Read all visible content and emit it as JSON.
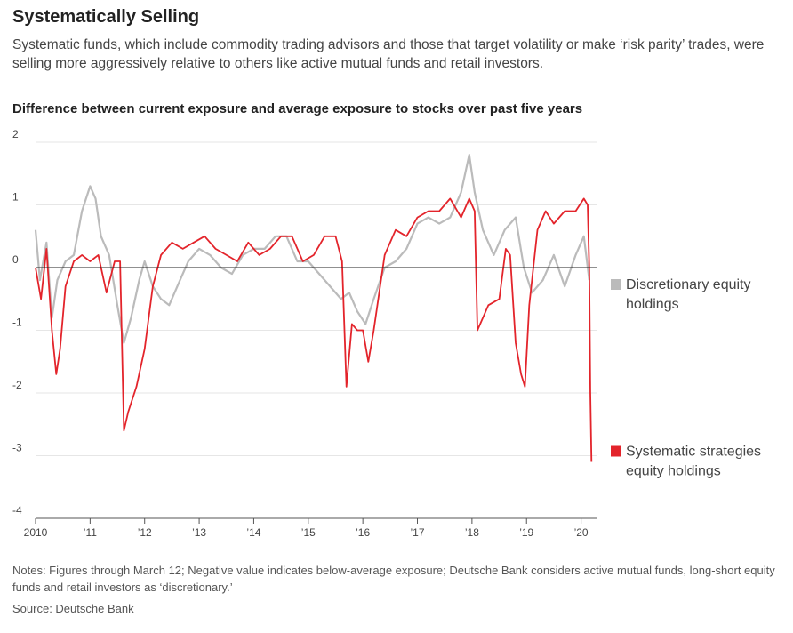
{
  "title": "Systematically Selling",
  "subtitle": "Systematic funds, which include commodity trading advisors and those that target volatility or make ‘risk parity’ trades, were selling more aggressively relative to others like active mutual funds and retail investors.",
  "chart_title": "Difference between current exposure and average exposure to stocks over past five years",
  "notes": "Notes: Figures through March 12; Negative value indicates below-average exposure; Deutsche Bank considers active mutual funds, long-short equity funds and retail investors as ‘discretionary.’",
  "source": "Source: Deutsche Bank",
  "chart_data": {
    "type": "line",
    "ylim": [
      -4,
      2
    ],
    "xlim": [
      2010,
      2020.3
    ],
    "yticks": [
      2,
      1,
      0,
      -1,
      -2,
      -3,
      -4
    ],
    "ytick_labels": [
      "2",
      "1",
      "0",
      "-1",
      "-2",
      "-3",
      "-4"
    ],
    "xticks": [
      2010,
      2011,
      2012,
      2013,
      2014,
      2015,
      2016,
      2017,
      2018,
      2019,
      2020
    ],
    "xtick_labels": [
      "2010",
      "’11",
      "’12",
      "’13",
      "’14",
      "’15",
      "’16",
      "’17",
      "’18",
      "’19",
      "’20"
    ],
    "grid": true,
    "legend_position": "right",
    "series": [
      {
        "name": "Discretionary equity holdings",
        "color": "#bbbbbb",
        "x": [
          2010.0,
          2010.08,
          2010.2,
          2010.3,
          2010.4,
          2010.55,
          2010.7,
          2010.85,
          2011.0,
          2011.1,
          2011.2,
          2011.35,
          2011.5,
          2011.62,
          2011.75,
          2011.9,
          2012.0,
          2012.15,
          2012.3,
          2012.45,
          2012.6,
          2012.8,
          2013.0,
          2013.2,
          2013.4,
          2013.6,
          2013.8,
          2014.0,
          2014.2,
          2014.4,
          2014.6,
          2014.8,
          2015.0,
          2015.2,
          2015.4,
          2015.6,
          2015.75,
          2015.9,
          2016.05,
          2016.2,
          2016.4,
          2016.6,
          2016.8,
          2017.0,
          2017.2,
          2017.4,
          2017.6,
          2017.8,
          2017.95,
          2018.05,
          2018.2,
          2018.4,
          2018.6,
          2018.8,
          2018.95,
          2019.1,
          2019.3,
          2019.5,
          2019.7,
          2019.9,
          2020.05,
          2020.15
        ],
        "values": [
          0.6,
          -0.2,
          0.4,
          -0.8,
          -0.2,
          0.1,
          0.2,
          0.9,
          1.3,
          1.1,
          0.5,
          0.2,
          -0.6,
          -1.2,
          -0.8,
          -0.2,
          0.1,
          -0.3,
          -0.5,
          -0.6,
          -0.3,
          0.1,
          0.3,
          0.2,
          0.0,
          -0.1,
          0.2,
          0.3,
          0.3,
          0.5,
          0.5,
          0.1,
          0.1,
          -0.1,
          -0.3,
          -0.5,
          -0.4,
          -0.7,
          -0.9,
          -0.5,
          0.0,
          0.1,
          0.3,
          0.7,
          0.8,
          0.7,
          0.8,
          1.2,
          1.8,
          1.2,
          0.6,
          0.2,
          0.6,
          0.8,
          0.0,
          -0.4,
          -0.2,
          0.2,
          -0.3,
          0.2,
          0.5,
          -0.2
        ]
      },
      {
        "name": "Systematic strategies equity holdings",
        "color": "#e3242b",
        "x": [
          2010.0,
          2010.1,
          2010.2,
          2010.3,
          2010.38,
          2010.45,
          2010.55,
          2010.7,
          2010.85,
          2011.0,
          2011.15,
          2011.3,
          2011.45,
          2011.55,
          2011.62,
          2011.7,
          2011.85,
          2012.0,
          2012.15,
          2012.3,
          2012.5,
          2012.7,
          2012.9,
          2013.1,
          2013.3,
          2013.5,
          2013.7,
          2013.9,
          2014.1,
          2014.3,
          2014.5,
          2014.7,
          2014.9,
          2015.1,
          2015.3,
          2015.5,
          2015.62,
          2015.7,
          2015.8,
          2015.9,
          2016.0,
          2016.1,
          2016.2,
          2016.4,
          2016.6,
          2016.8,
          2017.0,
          2017.2,
          2017.4,
          2017.6,
          2017.8,
          2017.95,
          2018.05,
          2018.1,
          2018.3,
          2018.5,
          2018.62,
          2018.7,
          2018.8,
          2018.9,
          2018.97,
          2019.05,
          2019.2,
          2019.35,
          2019.5,
          2019.7,
          2019.9,
          2020.05,
          2020.12,
          2020.15,
          2020.17,
          2020.19
        ],
        "values": [
          0.0,
          -0.5,
          0.3,
          -1.0,
          -1.7,
          -1.3,
          -0.3,
          0.1,
          0.2,
          0.1,
          0.2,
          -0.4,
          0.1,
          0.1,
          -2.6,
          -2.3,
          -1.9,
          -1.3,
          -0.3,
          0.2,
          0.4,
          0.3,
          0.4,
          0.5,
          0.3,
          0.2,
          0.1,
          0.4,
          0.2,
          0.3,
          0.5,
          0.5,
          0.1,
          0.2,
          0.5,
          0.5,
          0.1,
          -1.9,
          -0.9,
          -1.0,
          -1.0,
          -1.5,
          -1.0,
          0.2,
          0.6,
          0.5,
          0.8,
          0.9,
          0.9,
          1.1,
          0.8,
          1.1,
          0.9,
          -1.0,
          -0.6,
          -0.5,
          0.3,
          0.2,
          -1.2,
          -1.7,
          -1.9,
          -0.6,
          0.6,
          0.9,
          0.7,
          0.9,
          0.9,
          1.1,
          1.0,
          0.0,
          -2.0,
          -3.1
        ]
      }
    ]
  }
}
